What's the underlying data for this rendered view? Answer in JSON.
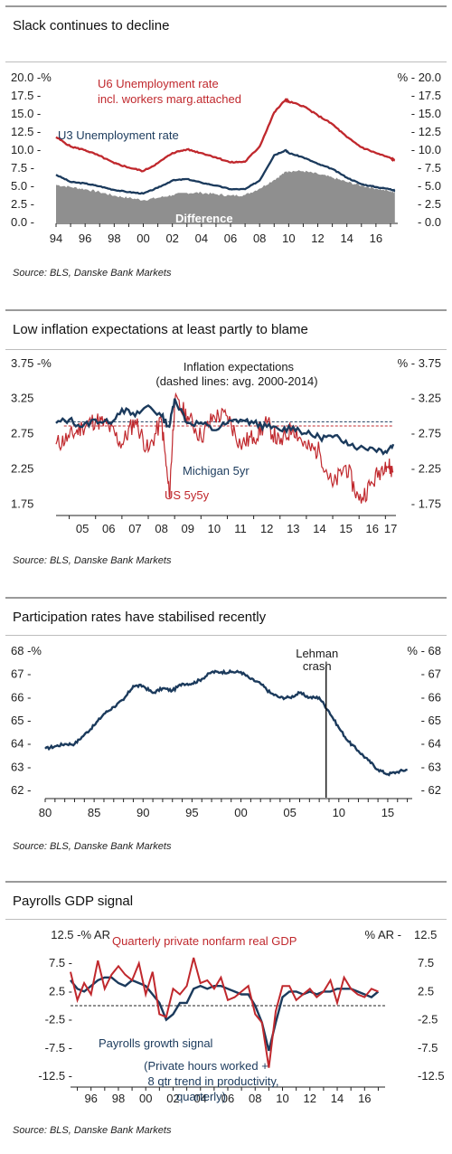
{
  "colors": {
    "navy": "#1b3a5c",
    "red": "#c0282d",
    "grey": "#8f8f8f",
    "dark": "#1a1a1a"
  },
  "charts": [
    {
      "title": "Slack continues to decline",
      "source": "Source: BLS, Danske Bank Markets",
      "left_axis_labels": [
        "20.0 -%",
        "17.5 -",
        "15.0 -",
        "12.5 -",
        "10.0 -",
        "7.5 -",
        "5.0 -",
        "2.5 -",
        "0.0 -"
      ],
      "right_axis_labels": [
        "% - 20.0",
        "- 17.5",
        "- 15.0",
        "- 12.5",
        "- 10.0",
        "- 7.5",
        "- 5.0",
        "- 2.5",
        "- 0.0"
      ],
      "x_tick_labels": [
        "94",
        "96",
        "98",
        "00",
        "02",
        "04",
        "06",
        "08",
        "10",
        "12",
        "14",
        "16"
      ],
      "annotations": {
        "u6_line1": "U6 Unemployment rate",
        "u6_line2": "incl. workers marg.attached",
        "u3": "U3 Unemployment rate",
        "difference": "Difference"
      }
    },
    {
      "title": "Low inflation expectations at least partly to blame",
      "source": "Source: BLS, Danske Bank Markets",
      "left_axis_labels": [
        "3.75 -%",
        "3.25",
        "2.75",
        "2.25",
        "1.75"
      ],
      "right_axis_labels": [
        "% - 3.75",
        "- 3.25",
        "- 2.75",
        "- 2.25",
        "- 1.75"
      ],
      "x_tick_labels": [
        "05",
        "06",
        "07",
        "08",
        "09",
        "10",
        "11",
        "12",
        "13",
        "14",
        "15",
        "16",
        "17"
      ],
      "annotations": {
        "title_line1": "Inflation expectations",
        "title_line2": "(dashed lines: avg. 2000-2014)",
        "michigan": "Michigan 5yr",
        "us5y5y": "US 5y5y"
      }
    },
    {
      "title": "Participation rates have stabilised recently",
      "source": "Source: BLS, Danske Bank Markets",
      "left_axis_labels": [
        "68 -%",
        "67 -",
        "66 -",
        "65 -",
        "64 -",
        "63 -",
        "62 -"
      ],
      "right_axis_labels": [
        "% - 68",
        "- 67",
        "- 66",
        "- 65",
        "- 64",
        "- 63",
        "- 62"
      ],
      "x_tick_labels": [
        "80",
        "85",
        "90",
        "95",
        "00",
        "05",
        "10",
        "15"
      ],
      "annotations": {
        "lehman_line1": "Lehman",
        "lehman_line2": "crash"
      }
    },
    {
      "title": "Payrolls GDP signal",
      "source": "Source: BLS, Danske Bank Markets",
      "left_axis_labels": [
        "12.5 -% AR",
        "7.5 -",
        "2.5 -",
        "-2.5 -",
        "-7.5 -",
        "-12.5 -"
      ],
      "right_axis_labels": [
        "% AR -",
        "7.5",
        "2.5",
        "-2.5",
        "-7.5",
        "-12.5"
      ],
      "right_axis_top_value": "12.5",
      "x_tick_labels": [
        "96",
        "98",
        "00",
        "02",
        "04",
        "06",
        "08",
        "10",
        "12",
        "14",
        "16"
      ],
      "annotations": {
        "gdp": "Quarterly private nonfarm real GDP",
        "payrolls": "Payrolls growth signal",
        "payrolls_note1": "(Private hours worked +",
        "payrolls_note2": "8 qtr trend in productivity,",
        "payrolls_note3": "quarterly)"
      }
    }
  ],
  "chart_data": [
    {
      "type": "line",
      "title": "Slack continues to decline",
      "x": [
        1994,
        1995,
        1996,
        1997,
        1998,
        1999,
        2000,
        2001,
        2002,
        2003,
        2004,
        2005,
        2006,
        2007,
        2008,
        2009,
        2009.8,
        2010,
        2011,
        2012,
        2013,
        2014,
        2015,
        2016,
        2017,
        2017.3
      ],
      "series": [
        {
          "name": "U6 Unemployment rate incl. workers marg.attached",
          "values": [
            11.8,
            10.5,
            10.0,
            9.2,
            8.2,
            7.6,
            7.1,
            8.2,
            9.6,
            10.1,
            9.6,
            9.0,
            8.3,
            8.4,
            10.5,
            15.2,
            17.0,
            16.7,
            16.1,
            14.8,
            13.6,
            11.8,
            10.4,
            9.6,
            8.9,
            8.6
          ]
        },
        {
          "name": "U3 Unemployment rate",
          "values": [
            6.6,
            5.6,
            5.4,
            5.0,
            4.5,
            4.2,
            4.0,
            4.8,
            5.8,
            6.0,
            5.5,
            5.1,
            4.6,
            4.6,
            5.8,
            9.3,
            10.0,
            9.6,
            9.0,
            8.1,
            7.4,
            6.2,
            5.3,
            4.9,
            4.6,
            4.4
          ]
        },
        {
          "name": "Difference",
          "values": [
            5.2,
            4.9,
            4.6,
            4.2,
            3.7,
            3.4,
            3.1,
            3.4,
            3.8,
            4.1,
            4.1,
            3.9,
            3.7,
            3.8,
            4.7,
            5.9,
            7.0,
            7.1,
            7.1,
            6.7,
            6.2,
            5.6,
            5.1,
            4.7,
            4.3,
            4.2
          ]
        }
      ],
      "ylim": [
        0,
        20
      ],
      "xlim": [
        1994,
        2017.5
      ]
    },
    {
      "type": "line",
      "title": "Low inflation expectations at least partly to blame",
      "x": [
        2004.5,
        2005,
        2005.5,
        2006,
        2006.5,
        2007,
        2007.5,
        2008,
        2008.5,
        2008.8,
        2009,
        2009.5,
        2010,
        2010.5,
        2011,
        2011.5,
        2012,
        2012.5,
        2013,
        2013.5,
        2014,
        2014.5,
        2015,
        2015.5,
        2016,
        2016.5,
        2017,
        2017.3
      ],
      "series": [
        {
          "name": "Michigan 5yr",
          "values": [
            2.9,
            2.95,
            2.85,
            2.95,
            2.9,
            3.1,
            3.0,
            3.15,
            3.0,
            2.85,
            3.25,
            2.9,
            2.9,
            2.8,
            2.9,
            2.95,
            2.9,
            2.85,
            2.8,
            2.85,
            2.75,
            2.7,
            2.7,
            2.65,
            2.55,
            2.55,
            2.5,
            2.6
          ]
        },
        {
          "name": "US 5y5y",
          "values": [
            2.6,
            2.7,
            2.85,
            2.95,
            2.85,
            2.6,
            2.95,
            2.5,
            2.95,
            1.85,
            3.2,
            3.0,
            2.7,
            3.0,
            3.0,
            2.6,
            2.7,
            2.9,
            2.6,
            2.85,
            2.55,
            2.5,
            2.0,
            2.3,
            1.8,
            2.05,
            2.35,
            2.2
          ]
        },
        {
          "name": "Michigan 5yr avg. 2000-2014",
          "values": [
            2.92,
            2.92,
            2.92,
            2.92,
            2.92,
            2.92,
            2.92,
            2.92,
            2.92,
            2.92,
            2.92,
            2.92,
            2.92,
            2.92,
            2.92,
            2.92,
            2.92,
            2.92,
            2.92,
            2.92,
            2.92,
            2.92,
            2.92,
            2.92,
            2.92,
            2.92,
            2.92,
            2.92
          ]
        },
        {
          "name": "US 5y5y avg. 2000-2014",
          "values": [
            2.86,
            2.86,
            2.86,
            2.86,
            2.86,
            2.86,
            2.86,
            2.86,
            2.86,
            2.86,
            2.86,
            2.86,
            2.86,
            2.86,
            2.86,
            2.86,
            2.86,
            2.86,
            2.86,
            2.86,
            2.86,
            2.86,
            2.86,
            2.86,
            2.86,
            2.86,
            2.86,
            2.86
          ]
        }
      ],
      "ylim": [
        1.6,
        3.85
      ],
      "xlim": [
        2004.5,
        2017.4
      ]
    },
    {
      "type": "line",
      "title": "Participation rates have stabilised recently",
      "x": [
        1980,
        1981,
        1982,
        1983,
        1984,
        1985,
        1986,
        1987,
        1988,
        1989,
        1990,
        1991,
        1992,
        1993,
        1994,
        1995,
        1996,
        1997,
        1998,
        1999,
        2000,
        2001,
        2002,
        2003,
        2004,
        2005,
        2006,
        2007,
        2008,
        2009,
        2010,
        2011,
        2012,
        2013,
        2014,
        2015,
        2016,
        2017
      ],
      "series": [
        {
          "name": "Participation rate",
          "values": [
            63.8,
            63.9,
            64.0,
            64.0,
            64.4,
            64.8,
            65.3,
            65.6,
            65.9,
            66.5,
            66.5,
            66.2,
            66.4,
            66.3,
            66.6,
            66.6,
            66.8,
            67.1,
            67.1,
            67.1,
            67.1,
            66.8,
            66.6,
            66.2,
            66.0,
            66.0,
            66.2,
            66.0,
            66.0,
            65.4,
            64.7,
            64.1,
            63.7,
            63.3,
            62.9,
            62.7,
            62.8,
            62.9
          ]
        }
      ],
      "ylim": [
        62,
        68
      ],
      "xlim": [
        1980,
        2017.5
      ],
      "vline_x": 2008.7
    },
    {
      "type": "line",
      "title": "Payrolls GDP signal",
      "x": [
        1994.5,
        1995,
        1995.5,
        1996,
        1996.5,
        1997,
        1997.5,
        1998,
        1998.5,
        1999,
        1999.5,
        2000,
        2000.5,
        2001,
        2001.5,
        2002,
        2002.5,
        2003,
        2003.5,
        2004,
        2004.5,
        2005,
        2005.5,
        2006,
        2006.5,
        2007,
        2007.5,
        2008,
        2008.5,
        2009,
        2009.5,
        2010,
        2010.5,
        2011,
        2011.5,
        2012,
        2012.5,
        2013,
        2013.5,
        2014,
        2014.5,
        2015,
        2015.5,
        2016,
        2016.5,
        2017
      ],
      "series": [
        {
          "name": "Quarterly private nonfarm real GDP",
          "values": [
            6.0,
            1.0,
            4.0,
            2.0,
            8.0,
            3.0,
            5.5,
            7.0,
            5.5,
            4.5,
            7.5,
            2.0,
            6.0,
            -1.5,
            -2.0,
            3.0,
            2.0,
            3.5,
            8.5,
            4.0,
            4.5,
            3.0,
            5.0,
            1.0,
            1.5,
            2.5,
            3.5,
            -1.5,
            -3.0,
            -11.0,
            -1.0,
            3.5,
            3.5,
            1.0,
            2.0,
            3.0,
            1.5,
            2.5,
            4.5,
            0.5,
            5.0,
            3.0,
            2.0,
            1.5,
            3.0,
            2.5
          ]
        },
        {
          "name": "Payrolls growth signal",
          "values": [
            4.5,
            3.0,
            2.5,
            3.5,
            4.5,
            5.0,
            5.0,
            4.0,
            3.5,
            4.5,
            4.0,
            3.5,
            2.0,
            0.5,
            -2.5,
            -1.5,
            0.5,
            0.5,
            3.0,
            3.5,
            3.0,
            3.5,
            3.5,
            3.0,
            2.5,
            2.0,
            2.0,
            0.0,
            -3.0,
            -8.0,
            -3.0,
            1.5,
            2.5,
            2.5,
            2.0,
            2.5,
            2.0,
            2.5,
            2.5,
            3.0,
            3.0,
            3.0,
            2.5,
            2.0,
            1.5,
            2.5
          ]
        }
      ],
      "ylim": [
        -12.5,
        12.5
      ],
      "xlim": [
        1994.5,
        2017.5
      ]
    }
  ]
}
